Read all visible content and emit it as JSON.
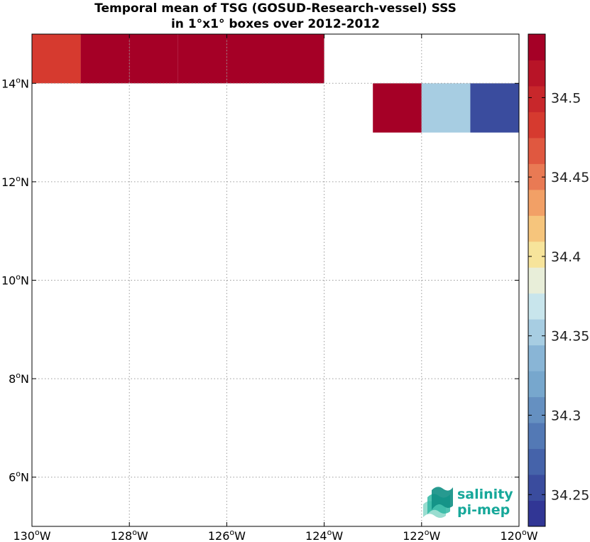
{
  "title_line1": "Temporal mean of TSG (GOSUD-Research-vessel) SSS",
  "title_line2": "in 1°x1° boxes over 2012-2012",
  "logo": {
    "line1": "salinity",
    "line2": "pi-mep",
    "color": "#17a89a"
  },
  "chart_data": {
    "type": "heatmap",
    "title": "Temporal mean of TSG (GOSUD-Research-vessel) SSS in 1°x1° boxes over 2012-2012",
    "xlim": [
      -130,
      -120
    ],
    "ylim": [
      5,
      15
    ],
    "grid": true,
    "x_ticks": [
      {
        "value": -130,
        "label": "130",
        "hemi": "W"
      },
      {
        "value": -128,
        "label": "128",
        "hemi": "W"
      },
      {
        "value": -126,
        "label": "126",
        "hemi": "W"
      },
      {
        "value": -124,
        "label": "124",
        "hemi": "W"
      },
      {
        "value": -122,
        "label": "122",
        "hemi": "W"
      },
      {
        "value": -120,
        "label": "120",
        "hemi": "W"
      }
    ],
    "y_ticks": [
      {
        "value": 6,
        "label": "6",
        "hemi": "N"
      },
      {
        "value": 8,
        "label": "8",
        "hemi": "N"
      },
      {
        "value": 10,
        "label": "10",
        "hemi": "N"
      },
      {
        "value": 12,
        "label": "12",
        "hemi": "N"
      },
      {
        "value": 14,
        "label": "14",
        "hemi": "N"
      }
    ],
    "cells": [
      {
        "lon": -130,
        "lat": 14,
        "value": 34.48
      },
      {
        "lon": -129,
        "lat": 14,
        "value": 34.53
      },
      {
        "lon": -128,
        "lat": 14,
        "value": 34.53
      },
      {
        "lon": -127,
        "lat": 14,
        "value": 34.53
      },
      {
        "lon": -126,
        "lat": 14,
        "value": 34.53
      },
      {
        "lon": -125,
        "lat": 14,
        "value": 34.53
      },
      {
        "lon": -123,
        "lat": 13,
        "value": 34.53
      },
      {
        "lon": -122,
        "lat": 13,
        "value": 34.36
      },
      {
        "lon": -121,
        "lat": 13,
        "value": 34.26
      }
    ],
    "colorbar": {
      "min": 34.23,
      "max": 34.54,
      "ticks": [
        34.25,
        34.3,
        34.35,
        34.4,
        34.45,
        34.5
      ],
      "tick_labels": [
        "34.25",
        "34.3",
        "34.35",
        "34.4",
        "34.45",
        "34.5"
      ],
      "colors": [
        "#313695",
        "#3a4c9e",
        "#4563aa",
        "#5379b5",
        "#6590c1",
        "#77a7cd",
        "#89b5d6",
        "#a7cde2",
        "#c8e5ec",
        "#e8eed9",
        "#f7e49b",
        "#f6c57c",
        "#f2a066",
        "#e97a54",
        "#e05840",
        "#d63a2f",
        "#c8272b",
        "#b81427",
        "#a50026"
      ]
    }
  }
}
